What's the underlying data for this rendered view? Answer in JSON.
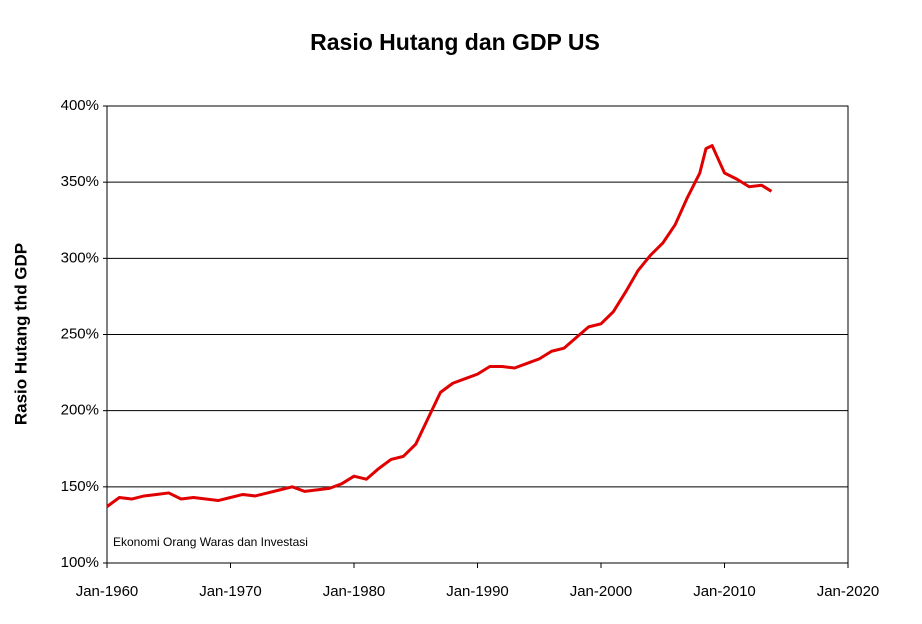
{
  "chart_data": {
    "type": "line",
    "title": "Rasio Hutang dan GDP US",
    "y_label": "Rasio Hutang thd GDP",
    "annotation": "Ekonomi Orang Waras dan Investasi",
    "x": [
      1960,
      1961,
      1962,
      1963,
      1964,
      1965,
      1966,
      1967,
      1968,
      1969,
      1970,
      1971,
      1972,
      1973,
      1974,
      1975,
      1976,
      1977,
      1978,
      1979,
      1980,
      1981,
      1982,
      1983,
      1984,
      1985,
      1986,
      1987,
      1988,
      1989,
      1990,
      1991,
      1992,
      1993,
      1994,
      1995,
      1996,
      1997,
      1998,
      1999,
      2000,
      2001,
      2002,
      2003,
      2004,
      2005,
      2006,
      2007,
      2008,
      2008.5,
      2009,
      2009.5,
      2010,
      2011,
      2012,
      2013,
      2013.8
    ],
    "series": [
      {
        "name": "Rasio Hutang thd GDP",
        "color": "#e00000",
        "values": [
          137,
          143,
          142,
          144,
          145,
          146,
          142,
          143,
          142,
          141,
          143,
          145,
          144,
          146,
          148,
          150,
          147,
          148,
          149,
          152,
          157,
          155,
          162,
          168,
          170,
          178,
          195,
          212,
          218,
          221,
          224,
          229,
          229,
          228,
          231,
          234,
          239,
          241,
          248,
          255,
          257,
          265,
          278,
          292,
          302,
          310,
          322,
          340,
          356,
          372,
          374,
          365,
          356,
          352,
          347,
          348,
          344
        ]
      }
    ],
    "xlim": [
      1960,
      2020
    ],
    "xticks": [
      {
        "value": 1960,
        "label": "Jan-1960"
      },
      {
        "value": 1970,
        "label": "Jan-1970"
      },
      {
        "value": 1980,
        "label": "Jan-1980"
      },
      {
        "value": 1990,
        "label": "Jan-1990"
      },
      {
        "value": 2000,
        "label": "Jan-2000"
      },
      {
        "value": 2010,
        "label": "Jan-2010"
      },
      {
        "value": 2020,
        "label": "Jan-2020"
      }
    ],
    "ylim": [
      100,
      400
    ],
    "yticks": [
      {
        "value": 100,
        "label": "100%"
      },
      {
        "value": 150,
        "label": "150%"
      },
      {
        "value": 200,
        "label": "200%"
      },
      {
        "value": 250,
        "label": "250%"
      },
      {
        "value": 300,
        "label": "300%"
      },
      {
        "value": 350,
        "label": "350%"
      },
      {
        "value": 400,
        "label": "400%"
      }
    ],
    "grid": true
  }
}
